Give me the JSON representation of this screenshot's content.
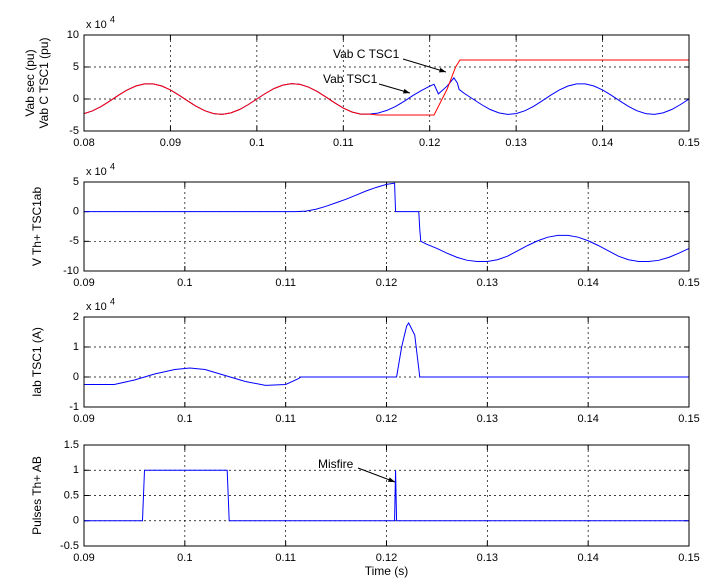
{
  "chart_data": [
    {
      "type": "line",
      "ylabel": [
        "Vab sec (pu)",
        "Vab C TSC1 (pu)"
      ],
      "y_exponent_label": {
        "text": "x 10",
        "power": "4"
      },
      "xlim": [
        0.08,
        0.15
      ],
      "xticks": [
        0.08,
        0.09,
        0.1,
        0.11,
        0.12,
        0.13,
        0.14,
        0.15
      ],
      "ylim": [
        -5,
        10
      ],
      "yticks": [
        -5,
        0,
        5,
        10
      ],
      "grid": true,
      "series": [
        {
          "name": "Vab TSC1",
          "color": "#0000ff",
          "x": [
            0.08,
            0.081,
            0.082,
            0.083,
            0.084,
            0.085,
            0.086,
            0.087,
            0.088,
            0.089,
            0.09,
            0.091,
            0.092,
            0.093,
            0.094,
            0.095,
            0.096,
            0.097,
            0.098,
            0.099,
            0.1,
            0.101,
            0.102,
            0.103,
            0.104,
            0.105,
            0.106,
            0.107,
            0.108,
            0.109,
            0.11,
            0.111,
            0.112,
            0.113,
            0.114,
            0.115,
            0.116,
            0.117,
            0.118,
            0.119,
            0.12,
            0.1205,
            0.121,
            0.122,
            0.1228,
            0.1232,
            0.1234,
            0.124,
            0.125,
            0.126,
            0.127,
            0.128,
            0.129,
            0.13,
            0.131,
            0.132,
            0.133,
            0.134,
            0.135,
            0.136,
            0.137,
            0.138,
            0.139,
            0.14,
            0.141,
            0.142,
            0.143,
            0.144,
            0.145,
            0.146,
            0.147,
            0.148,
            0.149,
            0.15
          ],
          "values": [
            -2.28,
            -1.85,
            -1.16,
            -0.3,
            0.6,
            1.41,
            2.03,
            2.36,
            2.36,
            2.03,
            1.41,
            0.6,
            -0.3,
            -1.16,
            -1.85,
            -2.28,
            -2.4,
            -2.17,
            -1.64,
            -0.88,
            0,
            0.88,
            1.64,
            2.17,
            2.4,
            2.28,
            1.85,
            1.16,
            0.3,
            -0.6,
            -1.41,
            -2.03,
            -2.36,
            -2.36,
            -2.2,
            -1.8,
            -1.2,
            -0.4,
            0.5,
            1.3,
            2.0,
            2.3,
            0.8,
            2.0,
            3.3,
            2.5,
            1.5,
            0.88,
            0,
            -0.88,
            -1.64,
            -2.17,
            -2.4,
            -2.28,
            -1.85,
            -1.16,
            -0.3,
            0.6,
            1.41,
            2.03,
            2.36,
            2.36,
            2.03,
            1.41,
            0.6,
            -0.3,
            -1.16,
            -1.85,
            -2.28,
            -2.4,
            -2.17,
            -1.64,
            -0.88,
            0
          ]
        },
        {
          "name": "Vab C TSC1",
          "color": "#ff0000",
          "x": [
            0.08,
            0.081,
            0.082,
            0.083,
            0.084,
            0.085,
            0.086,
            0.087,
            0.088,
            0.089,
            0.09,
            0.091,
            0.092,
            0.093,
            0.094,
            0.095,
            0.096,
            0.097,
            0.098,
            0.099,
            0.1,
            0.101,
            0.102,
            0.103,
            0.104,
            0.105,
            0.106,
            0.107,
            0.108,
            0.109,
            0.11,
            0.111,
            0.112,
            0.113,
            0.114,
            0.1205,
            0.122,
            0.123,
            0.1235,
            0.15
          ],
          "values": [
            -2.28,
            -1.85,
            -1.16,
            -0.3,
            0.6,
            1.41,
            2.03,
            2.36,
            2.36,
            2.03,
            1.41,
            0.6,
            -0.3,
            -1.16,
            -1.85,
            -2.28,
            -2.4,
            -2.17,
            -1.64,
            -0.88,
            0,
            0.88,
            1.64,
            2.17,
            2.4,
            2.28,
            1.85,
            1.16,
            0.3,
            -0.6,
            -1.41,
            -2.03,
            -2.36,
            -2.36,
            -2.5,
            -2.5,
            1.5,
            5.0,
            6.1,
            6.1
          ]
        }
      ]
    },
    {
      "type": "line",
      "ylabel": [
        "V Th+ TSC1ab"
      ],
      "y_exponent_label": {
        "text": "x 10",
        "power": "4"
      },
      "xlim": [
        0.09,
        0.15
      ],
      "xticks": [
        0.09,
        0.1,
        0.11,
        0.12,
        0.13,
        0.14,
        0.15
      ],
      "ylim": [
        -10,
        5
      ],
      "yticks": [
        -10,
        -5,
        0,
        5
      ],
      "grid": true,
      "color": "#0000ff",
      "x": [
        0.09,
        0.111,
        0.112,
        0.113,
        0.114,
        0.115,
        0.116,
        0.117,
        0.118,
        0.119,
        0.12,
        0.1208,
        0.1209,
        0.1232,
        0.1233,
        0.1234,
        0.124,
        0.125,
        0.126,
        0.127,
        0.128,
        0.129,
        0.13,
        0.131,
        0.132,
        0.133,
        0.134,
        0.135,
        0.136,
        0.137,
        0.138,
        0.139,
        0.14,
        0.141,
        0.142,
        0.143,
        0.144,
        0.145,
        0.146,
        0.147,
        0.148,
        0.149,
        0.15
      ],
      "values": [
        0,
        0,
        0.1,
        0.4,
        0.9,
        1.5,
        2.1,
        2.8,
        3.5,
        4.1,
        4.6,
        4.8,
        0,
        0,
        -3,
        -5,
        -5.5,
        -6.2,
        -7,
        -7.7,
        -8.2,
        -8.4,
        -8.4,
        -8.1,
        -7.5,
        -6.6,
        -5.7,
        -4.9,
        -4.3,
        -4.0,
        -4.0,
        -4.3,
        -4.9,
        -5.7,
        -6.6,
        -7.5,
        -8.1,
        -8.4,
        -8.4,
        -8.2,
        -7.7,
        -7.0,
        -6.2
      ]
    },
    {
      "type": "line",
      "ylabel": [
        "Iab  TSC1 (A)"
      ],
      "y_exponent_label": {
        "text": "x 10",
        "power": "4"
      },
      "xlim": [
        0.09,
        0.15
      ],
      "xticks": [
        0.09,
        0.1,
        0.11,
        0.12,
        0.13,
        0.14,
        0.15
      ],
      "ylim": [
        -1,
        2
      ],
      "yticks": [
        -1,
        0,
        1,
        2
      ],
      "grid": true,
      "color": "#0000ff",
      "x": [
        0.09,
        0.093,
        0.095,
        0.097,
        0.099,
        0.1005,
        0.102,
        0.104,
        0.106,
        0.108,
        0.11,
        0.1113,
        0.1115,
        0.121,
        0.1215,
        0.122,
        0.1222,
        0.1228,
        0.1233,
        0.15
      ],
      "values": [
        -0.25,
        -0.25,
        -0.1,
        0.1,
        0.25,
        0.3,
        0.25,
        0.05,
        -0.15,
        -0.28,
        -0.25,
        -0.05,
        0,
        0,
        1.0,
        1.7,
        1.8,
        1.4,
        0,
        0
      ]
    },
    {
      "type": "line",
      "ylabel": [
        "Pulses Th+ AB"
      ],
      "xlabel": "Time (s)",
      "annotation": "Misfire",
      "xlim": [
        0.09,
        0.15
      ],
      "xticks": [
        0.09,
        0.1,
        0.11,
        0.12,
        0.13,
        0.14,
        0.15
      ],
      "ylim": [
        -0.5,
        1.5
      ],
      "yticks": [
        -0.5,
        0,
        0.5,
        1,
        1.5
      ],
      "grid": true,
      "color": "#0000ff",
      "x": [
        0.09,
        0.0958,
        0.096,
        0.1042,
        0.1044,
        0.1208,
        0.1209,
        0.121,
        0.15
      ],
      "values": [
        0,
        0,
        1,
        1,
        0,
        0,
        1,
        0,
        0
      ]
    }
  ]
}
